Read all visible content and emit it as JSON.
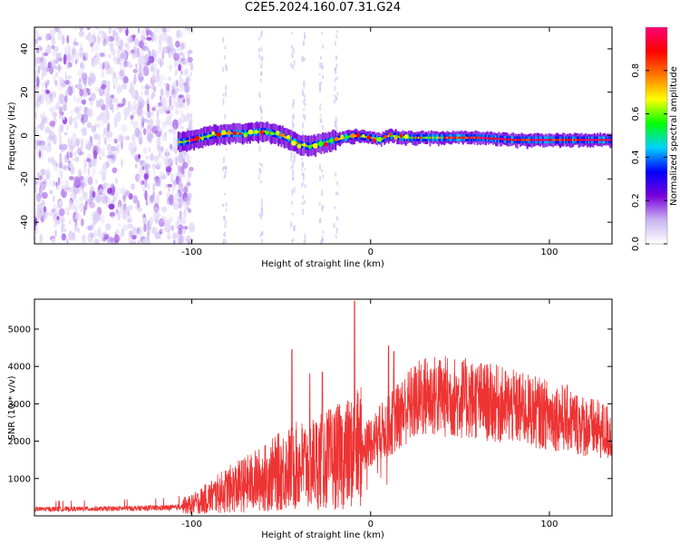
{
  "title": "C2E5.2024.160.07.31.G24",
  "chart_data": [
    {
      "type": "heatmap",
      "xlabel": "Height of straight line (km)",
      "ylabel": "Frequency (Hz)",
      "xlim": [
        -188,
        135
      ],
      "ylim": [
        -50,
        50
      ],
      "xticks": [
        -100,
        0,
        100
      ],
      "yticks": [
        -40,
        -20,
        0,
        20,
        40
      ],
      "colorbar": {
        "label": "Normalized spectral amplitude",
        "range": [
          0,
          1
        ],
        "ticks": [
          0.0,
          0.2,
          0.4,
          0.6,
          0.8
        ],
        "colormap": [
          "#ffffff",
          "#c8b4f0",
          "#7800dc",
          "#0000ff",
          "#00d2ff",
          "#00ff00",
          "#ffff00",
          "#ff7800",
          "#ff0000",
          "#ff0078"
        ]
      },
      "ridge": {
        "x": [
          -105,
          -90,
          -80,
          -70,
          -60,
          -50,
          -45,
          -40,
          -35,
          -30,
          -25,
          -20,
          -10,
          0,
          5,
          10,
          20,
          40,
          60,
          80,
          100,
          120,
          135
        ],
        "y": [
          -3,
          0,
          1,
          1,
          2,
          0,
          -2,
          -4,
          -5,
          -4,
          -3,
          -2,
          0,
          -1,
          -2,
          0,
          -1,
          -1,
          -1,
          -2,
          -2,
          -2,
          -2
        ]
      },
      "noise_region_x": [
        -188,
        -103
      ]
    },
    {
      "type": "line",
      "xlabel": "Height of straight line (km)",
      "ylabel": "SNR (10 * v/v)",
      "xlim": [
        -188,
        135
      ],
      "ylim": [
        0,
        5800
      ],
      "xticks": [
        -100,
        0,
        100
      ],
      "yticks": [
        1000,
        2000,
        3000,
        4000,
        5000
      ],
      "color": "#ee3333",
      "envelope": {
        "x": [
          -188,
          -150,
          -110,
          -100,
          -90,
          -80,
          -70,
          -60,
          -50,
          -40,
          -30,
          -20,
          -10,
          0,
          10,
          20,
          30,
          40,
          50,
          60,
          70,
          80,
          90,
          100,
          110,
          120,
          135
        ],
        "y": [
          180,
          190,
          220,
          300,
          500,
          700,
          850,
          1000,
          1200,
          1350,
          1450,
          1550,
          1700,
          2000,
          2400,
          2900,
          3200,
          3200,
          3150,
          3100,
          3000,
          2900,
          2800,
          2700,
          2600,
          2400,
          2200
        ]
      },
      "peaks": [
        {
          "x": -44,
          "y": 4450
        },
        {
          "x": -34,
          "y": 3800
        },
        {
          "x": -27,
          "y": 3850
        },
        {
          "x": -9,
          "y": 5750
        },
        {
          "x": 10,
          "y": 4550
        },
        {
          "x": 13,
          "y": 4400
        }
      ]
    }
  ]
}
